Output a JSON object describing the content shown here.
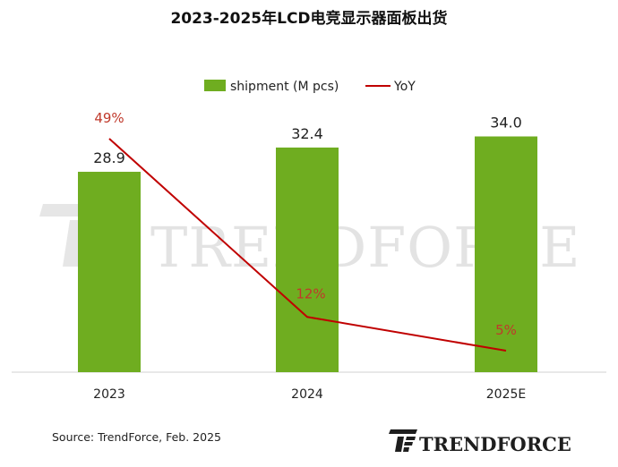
{
  "chart_data": {
    "type": "bar",
    "title": "2023-2025年LCD电竞显示器面板出货",
    "categories": [
      "2023",
      "2024",
      "2025E"
    ],
    "series": [
      {
        "name": "shipment (M pcs)",
        "kind": "bar",
        "values": [
          28.9,
          32.4,
          34.0
        ],
        "labels": [
          "28.9",
          "32.4",
          "34.0"
        ]
      },
      {
        "name": "YoY",
        "kind": "line",
        "values": [
          49,
          12,
          5
        ],
        "labels": [
          "49%",
          "12%",
          "5%"
        ]
      }
    ],
    "legend": {
      "position": "top-center"
    },
    "grid": false,
    "xlabel": "",
    "ylabel": ""
  },
  "colors": {
    "bar": "#6fad20",
    "line": "#c00000",
    "yoy_label": "#c0392b",
    "watermark": "#e3e3e3"
  },
  "watermark": {
    "text": "TRENDFORCE"
  },
  "footer": {
    "source": "Source: TrendForce, Feb. 2025"
  },
  "logo": {
    "text": "TRENDFORCE"
  }
}
